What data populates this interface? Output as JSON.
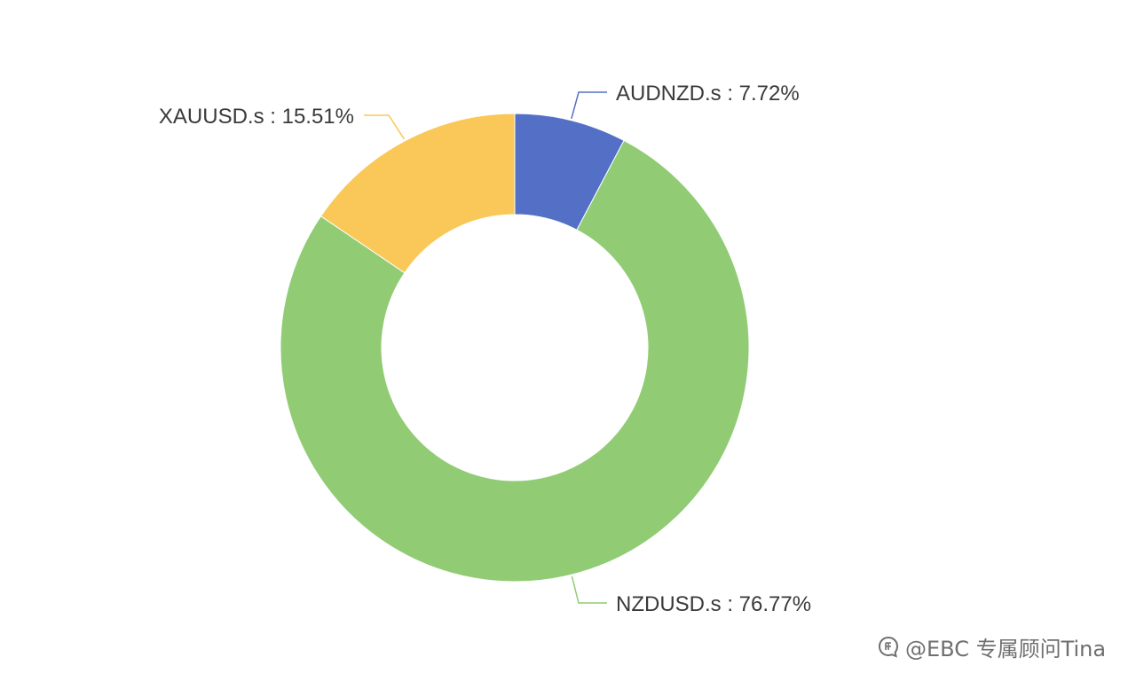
{
  "chart_data": {
    "type": "pie",
    "donut": true,
    "slices": [
      {
        "name": "AUDNZD.s",
        "value": 7.72,
        "label": "AUDNZD.s : 7.72%",
        "color": "#5470c6"
      },
      {
        "name": "NZDUSD.s",
        "value": 76.77,
        "label": "NZDUSD.s : 76.77%",
        "color": "#91cc75"
      },
      {
        "name": "XAUUSD.s",
        "value": 15.51,
        "label": "XAUUSD.s : 15.51%",
        "color": "#fac858"
      }
    ],
    "unit": "%",
    "legend": "none",
    "start_angle": "12 o'clock, clockwise"
  },
  "watermark": {
    "text": "@EBC 专属顾问Tina",
    "icon": "zhihu-logo-icon"
  }
}
